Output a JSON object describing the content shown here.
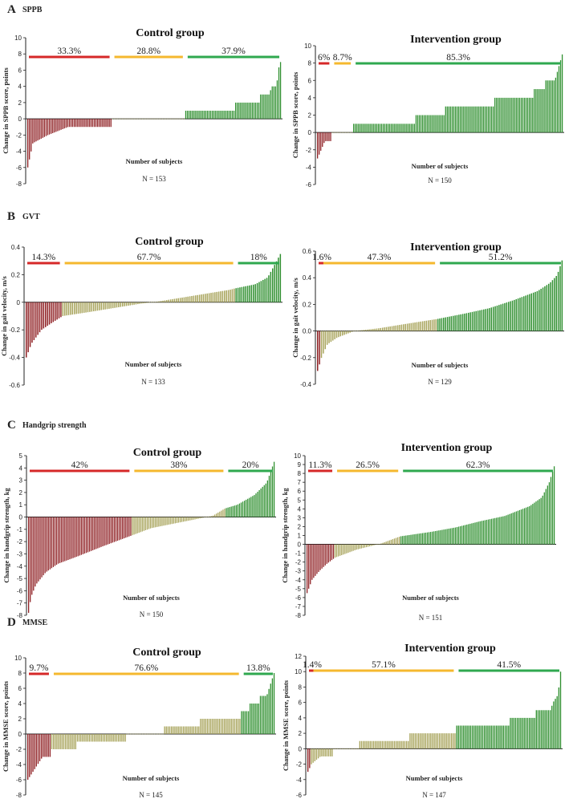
{
  "colors": {
    "decrease": "#8e1e22",
    "neutral": "#a7a35a",
    "increase": "#2f8f2f",
    "bar_red": "#d62828",
    "bar_yellow": "#f5b82e",
    "bar_green": "#2fa84f"
  },
  "panels": [
    {
      "letter": "A",
      "name": "SPPB"
    },
    {
      "letter": "B",
      "name": "GVT"
    },
    {
      "letter": "C",
      "name": "Handgrip strength"
    },
    {
      "letter": "D",
      "name": "MMSE"
    }
  ],
  "chart_data": [
    {
      "type": "bar",
      "panel": "A",
      "title": "Control group",
      "ylabel": "Change in SPPB score, points",
      "xlabel": "Number of subjects",
      "n_label": "N = 153",
      "ylim": [
        -8,
        10
      ],
      "yticks": [
        -8,
        -6,
        -4,
        -2,
        0,
        2,
        4,
        6,
        8,
        10
      ],
      "ytick_labels": [
        "-8",
        "-6",
        "-4",
        "-2",
        "0",
        "2",
        "4",
        "6",
        "8",
        "10"
      ],
      "percentages": [
        "33.3%",
        "28.8%",
        "37.9%"
      ],
      "percentage_values": [
        33.3,
        28.8,
        37.9
      ],
      "n": 153,
      "profile": [
        [
          0,
          -6
        ],
        [
          0.02,
          -3
        ],
        [
          0.08,
          -2
        ],
        [
          0.16,
          -1
        ],
        [
          0.333,
          -1
        ],
        [
          0.3331,
          0
        ],
        [
          0.621,
          0
        ],
        [
          0.6211,
          1
        ],
        [
          0.82,
          1
        ],
        [
          0.821,
          2
        ],
        [
          0.92,
          2
        ],
        [
          0.921,
          3
        ],
        [
          0.96,
          3
        ],
        [
          0.961,
          4
        ],
        [
          0.985,
          4
        ],
        [
          0.99,
          6
        ],
        [
          1,
          7
        ]
      ]
    },
    {
      "type": "bar",
      "panel": "A",
      "title": "Intervention group",
      "ylabel": "Change in SPPB score, points",
      "xlabel": "Number of subjects",
      "n_label": "N = 150",
      "ylim": [
        -6,
        10
      ],
      "yticks": [
        -6,
        -4,
        -2,
        0,
        2,
        4,
        6,
        8,
        10
      ],
      "ytick_labels": [
        "-6",
        "-4",
        "-2",
        "0",
        "2",
        "4",
        "6",
        "8",
        "10"
      ],
      "percentages": [
        "6%",
        "8.7%",
        "85.3%"
      ],
      "percentage_values": [
        6,
        8.7,
        85.3
      ],
      "n": 150,
      "profile": [
        [
          0,
          -3
        ],
        [
          0.015,
          -2
        ],
        [
          0.03,
          -1
        ],
        [
          0.06,
          -1
        ],
        [
          0.0601,
          0
        ],
        [
          0.147,
          0
        ],
        [
          0.1471,
          1
        ],
        [
          0.4,
          1
        ],
        [
          0.4001,
          2
        ],
        [
          0.52,
          2
        ],
        [
          0.5201,
          3
        ],
        [
          0.72,
          3
        ],
        [
          0.7201,
          4
        ],
        [
          0.88,
          4
        ],
        [
          0.8801,
          5
        ],
        [
          0.93,
          5
        ],
        [
          0.9301,
          6
        ],
        [
          0.97,
          6
        ],
        [
          0.98,
          7
        ],
        [
          0.99,
          8
        ],
        [
          1,
          9
        ]
      ]
    },
    {
      "type": "bar",
      "panel": "B",
      "title": "Control group",
      "ylabel": "Change in gait velocity, m/s",
      "xlabel": "Number of subjects",
      "n_label": "N = 133",
      "ylim": [
        -0.6,
        0.4
      ],
      "yticks": [
        -0.6,
        -0.4,
        -0.2,
        0,
        0.2,
        0.4
      ],
      "ytick_labels": [
        "-0.6",
        "-0.4",
        "-0.2",
        "0",
        "0.2",
        "0.4"
      ],
      "percentages": [
        "14.3%",
        "67.7%",
        "18%"
      ],
      "percentage_values": [
        14.3,
        67.7,
        18
      ],
      "n": 133,
      "profile": [
        [
          0,
          -0.4
        ],
        [
          0.02,
          -0.3
        ],
        [
          0.06,
          -0.2
        ],
        [
          0.1,
          -0.15
        ],
        [
          0.143,
          -0.1
        ],
        [
          0.25,
          -0.07
        ],
        [
          0.35,
          -0.04
        ],
        [
          0.45,
          -0.01
        ],
        [
          0.5,
          0.0
        ],
        [
          0.6,
          0.03
        ],
        [
          0.7,
          0.06
        ],
        [
          0.8,
          0.09
        ],
        [
          0.82,
          0.1
        ],
        [
          0.9,
          0.13
        ],
        [
          0.95,
          0.18
        ],
        [
          0.98,
          0.28
        ],
        [
          1,
          0.35
        ]
      ]
    },
    {
      "type": "bar",
      "panel": "B",
      "title": "Intervention group",
      "ylabel": "Change in gait velocity, m/s",
      "xlabel": "Number of subjects",
      "n_label": "N = 129",
      "ylim": [
        -0.4,
        0.6
      ],
      "yticks": [
        -0.4,
        -0.2,
        0.0,
        0.2,
        0.4,
        0.6
      ],
      "ytick_labels": [
        "-0.4",
        "-0.2",
        "0.0",
        "0.2",
        "0.4",
        "0.6"
      ],
      "percentages": [
        "1.6%",
        "47.3%",
        "51.2%"
      ],
      "percentage_values": [
        1.6,
        47.3,
        51.2
      ],
      "n": 129,
      "profile": [
        [
          0,
          -0.3
        ],
        [
          0.016,
          -0.2
        ],
        [
          0.04,
          -0.1
        ],
        [
          0.08,
          -0.05
        ],
        [
          0.15,
          0.0
        ],
        [
          0.25,
          0.02
        ],
        [
          0.35,
          0.05
        ],
        [
          0.489,
          0.09
        ],
        [
          0.6,
          0.13
        ],
        [
          0.7,
          0.17
        ],
        [
          0.8,
          0.23
        ],
        [
          0.9,
          0.3
        ],
        [
          0.95,
          0.36
        ],
        [
          0.98,
          0.42
        ],
        [
          1,
          0.53
        ]
      ]
    },
    {
      "type": "bar",
      "panel": "C",
      "title": "Control group",
      "ylabel": "Change in handgrip strength, kg",
      "xlabel": "Number of subjects",
      "n_label": "N = 150",
      "ylim": [
        -8,
        5
      ],
      "yticks": [
        -8,
        -7,
        -6,
        -5,
        -4,
        -3,
        -2,
        -1,
        0,
        1,
        2,
        3,
        4,
        5
      ],
      "ytick_labels": [
        "-8",
        "-7",
        "-6",
        "-5",
        "-4",
        "-3",
        "-2",
        "-1",
        "0",
        "1",
        "2",
        "3",
        "4",
        "5"
      ],
      "percentages": [
        "42%",
        "38%",
        "20%"
      ],
      "percentage_values": [
        42,
        38,
        20
      ],
      "n": 150,
      "profile": [
        [
          0,
          -7.8
        ],
        [
          0.01,
          -6.5
        ],
        [
          0.03,
          -5.5
        ],
        [
          0.07,
          -4.5
        ],
        [
          0.12,
          -3.8
        ],
        [
          0.2,
          -3.2
        ],
        [
          0.3,
          -2.4
        ],
        [
          0.42,
          -1.5
        ],
        [
          0.5,
          -0.9
        ],
        [
          0.6,
          -0.5
        ],
        [
          0.7,
          -0.1
        ],
        [
          0.75,
          0.1
        ],
        [
          0.8,
          0.7
        ],
        [
          0.85,
          1.0
        ],
        [
          0.92,
          1.8
        ],
        [
          0.97,
          2.8
        ],
        [
          1,
          4.5
        ]
      ]
    },
    {
      "type": "bar",
      "panel": "C",
      "title": "Intervention group",
      "ylabel": "Change in handgrip strength, kg",
      "xlabel": "Number of subjects",
      "n_label": "N = 151",
      "ylim": [
        -8,
        10
      ],
      "yticks": [
        -8,
        -7,
        -6,
        -5,
        -4,
        -3,
        -2,
        -1,
        0,
        1,
        2,
        3,
        4,
        5,
        6,
        7,
        8,
        9,
        10
      ],
      "ytick_labels": [
        "-8",
        "-7",
        "-6",
        "-5",
        "-4",
        "-3",
        "-2",
        "-1",
        "0",
        "1",
        "2",
        "3",
        "4",
        "5",
        "6",
        "7",
        "8",
        "9",
        "10"
      ],
      "percentages": [
        "11.3%",
        "26.5%",
        "62.3%"
      ],
      "percentage_values": [
        11.3,
        26.5,
        62.3
      ],
      "n": 151,
      "profile": [
        [
          0,
          -5.5
        ],
        [
          0.02,
          -4
        ],
        [
          0.05,
          -3
        ],
        [
          0.08,
          -2.2
        ],
        [
          0.113,
          -1.5
        ],
        [
          0.2,
          -0.6
        ],
        [
          0.3,
          0.1
        ],
        [
          0.377,
          0.9
        ],
        [
          0.5,
          1.4
        ],
        [
          0.6,
          1.9
        ],
        [
          0.7,
          2.6
        ],
        [
          0.8,
          3.2
        ],
        [
          0.9,
          4.3
        ],
        [
          0.95,
          5.3
        ],
        [
          0.98,
          7
        ],
        [
          1,
          8.8
        ]
      ]
    },
    {
      "type": "bar",
      "panel": "D",
      "title": "Control group",
      "ylabel": "Change in MMSE score, points",
      "xlabel": "Number of subjects",
      "n_label": "N = 145",
      "ylim": [
        -8,
        10
      ],
      "yticks": [
        -8,
        -6,
        -4,
        -2,
        0,
        2,
        4,
        6,
        8,
        10
      ],
      "ytick_labels": [
        "-8",
        "-6",
        "-4",
        "-2",
        "0",
        "2",
        "4",
        "6",
        "8",
        "10"
      ],
      "percentages": [
        "9.7%",
        "76.6%",
        "13.8%"
      ],
      "percentage_values": [
        9.7,
        76.6,
        13.8
      ],
      "n": 145,
      "profile": [
        [
          0,
          -6
        ],
        [
          0.02,
          -5
        ],
        [
          0.04,
          -4
        ],
        [
          0.06,
          -3
        ],
        [
          0.097,
          -3
        ],
        [
          0.0971,
          -2
        ],
        [
          0.2,
          -2
        ],
        [
          0.2001,
          -1
        ],
        [
          0.4,
          -1
        ],
        [
          0.4001,
          0
        ],
        [
          0.55,
          0
        ],
        [
          0.5501,
          1
        ],
        [
          0.7,
          1
        ],
        [
          0.7001,
          2
        ],
        [
          0.862,
          2
        ],
        [
          0.8621,
          3
        ],
        [
          0.9,
          3
        ],
        [
          0.9001,
          4
        ],
        [
          0.94,
          4
        ],
        [
          0.9401,
          5
        ],
        [
          0.97,
          5
        ],
        [
          0.98,
          6
        ],
        [
          1,
          8
        ]
      ]
    },
    {
      "type": "bar",
      "panel": "D",
      "title": "Intervention group",
      "ylabel": "Change in MMSE score, points",
      "xlabel": "Number of subjects",
      "n_label": "N = 147",
      "ylim": [
        -6,
        12
      ],
      "yticks": [
        -6,
        -4,
        -2,
        0,
        2,
        4,
        6,
        8,
        10,
        12
      ],
      "ytick_labels": [
        "-6",
        "-4",
        "-2",
        "0",
        "2",
        "4",
        "6",
        "8",
        "10",
        "12"
      ],
      "percentages": [
        "1.4%",
        "57.1%",
        "41.5%"
      ],
      "percentage_values": [
        1.4,
        57.1,
        41.5
      ],
      "n": 147,
      "profile": [
        [
          0,
          -3
        ],
        [
          0.014,
          -2
        ],
        [
          0.05,
          -1
        ],
        [
          0.1,
          -1
        ],
        [
          0.1001,
          0
        ],
        [
          0.2,
          0
        ],
        [
          0.2001,
          1
        ],
        [
          0.4,
          1
        ],
        [
          0.4001,
          2
        ],
        [
          0.585,
          2
        ],
        [
          0.5851,
          3
        ],
        [
          0.8,
          3
        ],
        [
          0.8001,
          4
        ],
        [
          0.9,
          4
        ],
        [
          0.9001,
          5
        ],
        [
          0.96,
          5
        ],
        [
          0.97,
          6
        ],
        [
          0.99,
          7
        ],
        [
          1,
          10
        ]
      ]
    }
  ]
}
